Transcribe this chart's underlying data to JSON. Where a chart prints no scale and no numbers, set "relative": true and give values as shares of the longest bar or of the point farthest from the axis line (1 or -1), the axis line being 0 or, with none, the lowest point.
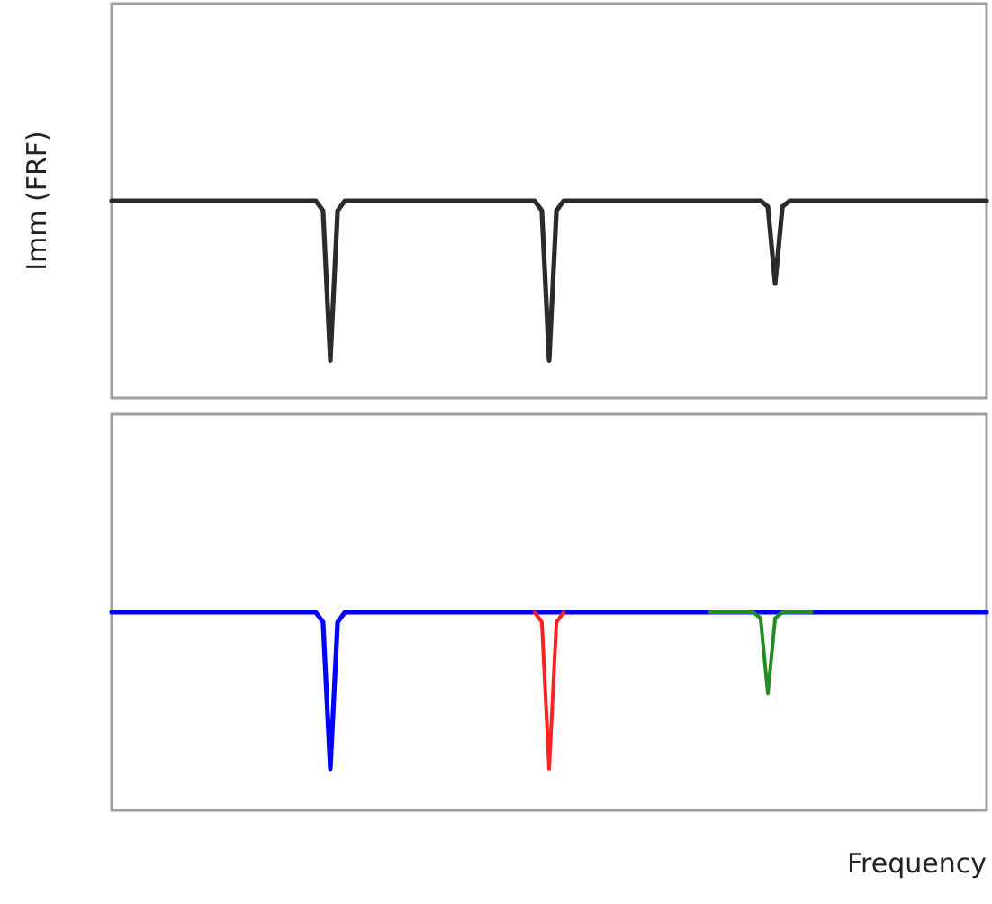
{
  "chart_data": [
    {
      "type": "line",
      "ylabel": "Imm (FRF)",
      "relative": true,
      "categories": [
        null,
        null,
        null,
        null,
        null,
        null,
        null,
        null,
        null,
        null,
        null,
        null,
        null,
        null,
        null,
        null,
        null,
        null,
        null,
        null,
        null,
        null,
        null,
        null,
        null,
        null,
        null,
        null,
        null,
        null,
        null,
        null,
        null,
        null,
        null,
        null,
        null,
        null,
        null,
        null,
        null,
        null,
        null,
        null,
        null,
        null,
        null,
        null,
        null,
        null,
        null,
        null,
        null,
        null,
        null,
        null,
        null,
        null,
        null,
        null,
        null,
        null,
        null,
        null,
        null,
        null,
        null,
        null,
        null,
        null,
        null,
        null,
        null,
        null,
        null,
        null,
        null,
        null,
        null,
        null,
        null,
        null,
        null,
        null,
        null,
        null,
        null,
        null,
        null,
        null,
        null,
        null,
        null,
        null,
        null,
        null,
        null,
        null,
        null,
        null,
        null,
        null,
        null,
        null,
        null,
        null,
        null,
        null,
        null,
        null,
        null,
        null,
        null,
        null,
        null,
        null,
        null,
        null,
        null,
        null,
        null
      ],
      "series": [
        {
          "color": "#2b2b2b",
          "values": [
            1,
            1,
            1,
            1,
            1,
            1,
            1,
            1,
            1,
            1,
            1,
            1,
            1,
            1,
            1,
            1,
            1,
            1,
            1,
            1,
            1,
            1,
            1,
            1,
            1,
            1,
            1,
            1,
            1,
            0.95,
            0.19,
            0.95,
            1,
            1,
            1,
            1,
            1,
            1,
            1,
            1,
            1,
            1,
            1,
            1,
            1,
            1,
            1,
            1,
            1,
            1,
            1,
            1,
            1,
            1,
            1,
            1,
            1,
            1,
            1,
            0.95,
            0.19,
            0.95,
            1,
            1,
            1,
            1,
            1,
            1,
            1,
            1,
            1,
            1,
            1,
            1,
            1,
            1,
            1,
            1,
            1,
            1,
            1,
            1,
            1,
            1,
            1,
            1,
            1,
            1,
            1,
            1,
            0.97,
            0.58,
            0.97,
            1,
            1,
            1,
            1,
            1,
            1,
            1,
            1,
            1,
            1,
            1,
            1,
            1,
            1,
            1,
            1,
            1,
            1,
            1,
            1,
            1,
            1,
            1,
            1,
            1,
            1,
            1,
            1
          ]
        }
      ]
    },
    {
      "type": "line",
      "xlabel": "Frequency",
      "relative": true,
      "categories": [
        null,
        null,
        null,
        null,
        null,
        null,
        null,
        null,
        null,
        null,
        null,
        null,
        null,
        null,
        null,
        null,
        null,
        null,
        null,
        null,
        null,
        null,
        null,
        null,
        null,
        null,
        null,
        null,
        null,
        null,
        null,
        null,
        null,
        null,
        null,
        null,
        null,
        null,
        null,
        null,
        null,
        null,
        null,
        null,
        null,
        null,
        null,
        null,
        null,
        null,
        null,
        null,
        null,
        null,
        null,
        null,
        null,
        null,
        null,
        null,
        null,
        null,
        null,
        null,
        null,
        null,
        null,
        null,
        null,
        null,
        null,
        null,
        null,
        null,
        null,
        null,
        null,
        null,
        null,
        null,
        null,
        null,
        null,
        null,
        null,
        null,
        null,
        null,
        null,
        null,
        null,
        null,
        null,
        null,
        null,
        null,
        null,
        null,
        null,
        null,
        null,
        null,
        null,
        null,
        null,
        null,
        null,
        null,
        null,
        null,
        null,
        null,
        null,
        null,
        null,
        null,
        null,
        null,
        null,
        null,
        null
      ],
      "series": [
        {
          "color": "#0000ff",
          "values": [
            1,
            1,
            1,
            1,
            1,
            1,
            1,
            1,
            1,
            1,
            1,
            1,
            1,
            1,
            1,
            1,
            1,
            1,
            1,
            1,
            1,
            1,
            1,
            1,
            1,
            1,
            1,
            1,
            1,
            0.95,
            0.21,
            0.95,
            1,
            1,
            1,
            1,
            1,
            1,
            1,
            1,
            1,
            1,
            1,
            1,
            1,
            1,
            1,
            1,
            1,
            1,
            1,
            1,
            1,
            1,
            1,
            1,
            1,
            1,
            1,
            1,
            1,
            1,
            1,
            1,
            1,
            1,
            1,
            1,
            1,
            1,
            1,
            1,
            1,
            1,
            1,
            1,
            1,
            1,
            1,
            1,
            1,
            1,
            1,
            1,
            1,
            1,
            1,
            1,
            1,
            1,
            1,
            1,
            1,
            1,
            1,
            1,
            1,
            1,
            1,
            1,
            1,
            1,
            1,
            1,
            1,
            1,
            1,
            1,
            1,
            1,
            1,
            1,
            1,
            1,
            1,
            1,
            1,
            1,
            1,
            1,
            1
          ]
        },
        {
          "color": "#ff2020",
          "values": [
            null,
            null,
            null,
            null,
            null,
            null,
            null,
            null,
            null,
            null,
            null,
            null,
            null,
            null,
            null,
            null,
            null,
            null,
            null,
            null,
            null,
            null,
            null,
            null,
            null,
            null,
            null,
            null,
            null,
            null,
            null,
            null,
            null,
            null,
            null,
            null,
            null,
            null,
            null,
            null,
            null,
            null,
            null,
            null,
            null,
            null,
            null,
            null,
            null,
            null,
            null,
            null,
            null,
            null,
            null,
            null,
            null,
            null,
            1,
            0.95,
            0.21,
            0.95,
            1,
            null,
            null,
            null,
            null,
            null,
            null,
            null,
            null,
            null,
            null,
            null,
            null,
            null,
            null,
            null,
            null,
            null,
            null,
            null,
            null,
            null,
            null,
            null,
            null,
            null,
            null,
            null,
            null,
            null,
            null,
            null,
            null,
            null,
            null,
            null,
            null,
            null,
            null,
            null,
            null,
            null,
            null,
            null,
            null,
            null,
            null,
            null,
            null,
            null,
            null,
            null,
            null,
            null,
            null,
            null,
            null,
            null,
            null
          ]
        },
        {
          "color": "#228b22",
          "values": [
            null,
            null,
            null,
            null,
            null,
            null,
            null,
            null,
            null,
            null,
            null,
            null,
            null,
            null,
            null,
            null,
            null,
            null,
            null,
            null,
            null,
            null,
            null,
            null,
            null,
            null,
            null,
            null,
            null,
            null,
            null,
            null,
            null,
            null,
            null,
            null,
            null,
            null,
            null,
            null,
            null,
            null,
            null,
            null,
            null,
            null,
            null,
            null,
            null,
            null,
            null,
            null,
            null,
            null,
            null,
            null,
            null,
            null,
            null,
            null,
            null,
            null,
            null,
            null,
            null,
            null,
            null,
            null,
            null,
            null,
            null,
            null,
            null,
            null,
            null,
            null,
            null,
            null,
            null,
            null,
            null,
            null,
            1,
            1,
            1,
            1,
            1,
            1,
            1,
            0.97,
            0.59,
            0.97,
            1,
            1,
            1,
            1,
            1,
            null,
            null,
            null,
            null,
            null,
            null,
            null,
            null,
            null,
            null,
            null,
            null,
            null,
            null,
            null,
            null,
            null,
            null,
            null,
            null,
            null,
            null,
            null,
            null
          ]
        }
      ]
    }
  ]
}
